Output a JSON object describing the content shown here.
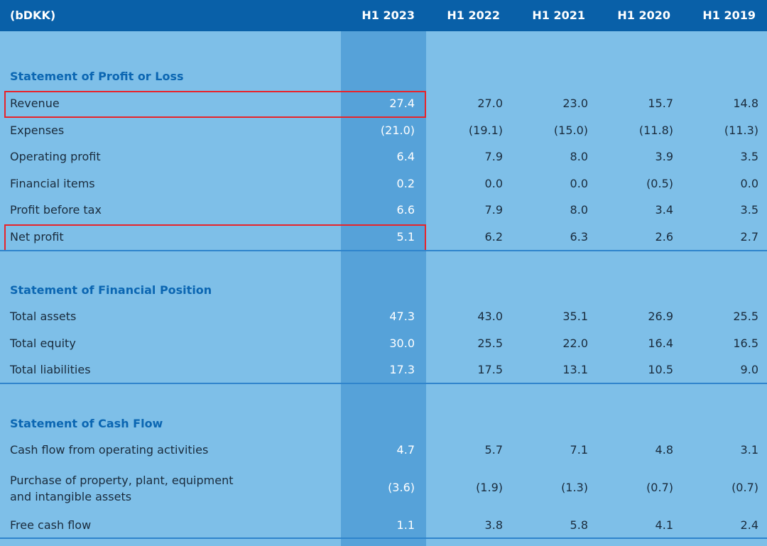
{
  "header": {
    "unit_label": "(bDKK)",
    "columns": [
      "H1 2023",
      "H1 2022",
      "H1 2021",
      "H1 2020",
      "H1 2019"
    ]
  },
  "sections": [
    {
      "title": "Statement of Profit or Loss",
      "rows": [
        {
          "label": "Revenue",
          "values": [
            "27.4",
            "27.0",
            "23.0",
            "15.7",
            "14.8"
          ],
          "highlighted": true
        },
        {
          "label": "Expenses",
          "values": [
            "(21.0)",
            "(19.1)",
            "(15.0)",
            "(11.8)",
            "(11.3)"
          ]
        },
        {
          "label": "Operating profit",
          "values": [
            "6.4",
            "7.9",
            "8.0",
            "3.9",
            "3.5"
          ]
        },
        {
          "label": "Financial items",
          "values": [
            "0.2",
            "0.0",
            "0.0",
            "(0.5)",
            "0.0"
          ]
        },
        {
          "label": "Profit before tax",
          "values": [
            "6.6",
            "7.9",
            "8.0",
            "3.4",
            "3.5"
          ]
        },
        {
          "label": "Net profit",
          "values": [
            "5.1",
            "6.2",
            "6.3",
            "2.6",
            "2.7"
          ],
          "highlighted": true
        }
      ]
    },
    {
      "title": "Statement of Financial Position",
      "rows": [
        {
          "label": "Total assets",
          "values": [
            "47.3",
            "43.0",
            "35.1",
            "26.9",
            "25.5"
          ]
        },
        {
          "label": "Total equity",
          "values": [
            "30.0",
            "25.5",
            "22.0",
            "16.4",
            "16.5"
          ]
        },
        {
          "label": "Total liabilities",
          "values": [
            "17.3",
            "17.5",
            "13.1",
            "10.5",
            "9.0"
          ]
        }
      ]
    },
    {
      "title": "Statement of Cash Flow",
      "rows": [
        {
          "label": "Cash flow from operating activities",
          "values": [
            "4.7",
            "5.7",
            "7.1",
            "4.8",
            "3.1"
          ]
        },
        {
          "label": "Purchase of property, plant, equipment\nand intangible assets",
          "values": [
            "(3.6)",
            "(1.9)",
            "(1.3)",
            "(0.7)",
            "(0.7)"
          ]
        },
        {
          "label": "Free cash flow",
          "values": [
            "1.1",
            "3.8",
            "5.8",
            "4.1",
            "2.4"
          ]
        }
      ]
    }
  ],
  "colors": {
    "header_bg": "#0960a8",
    "page_bg": "#7ebfe8",
    "highlight_column_bg": "#56a2d9",
    "section_title": "#0b66b2",
    "highlight_box": "#e8232a"
  }
}
